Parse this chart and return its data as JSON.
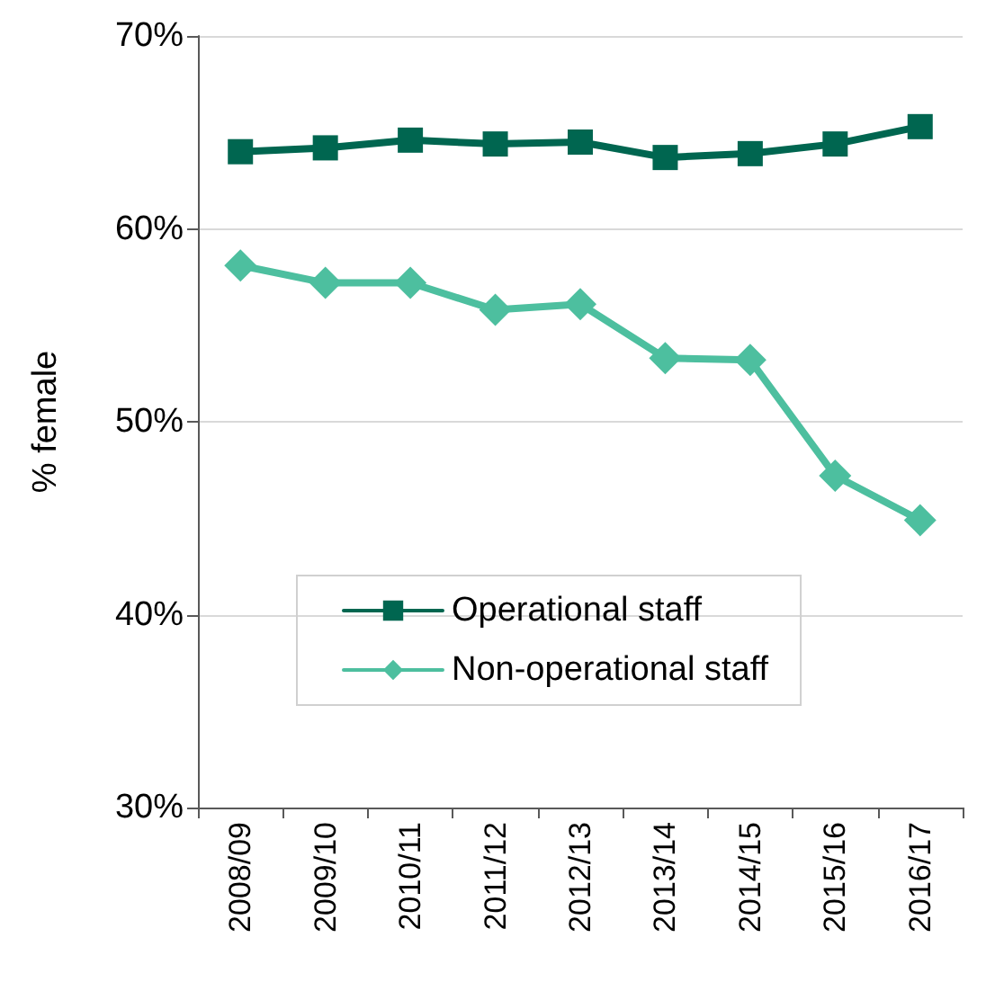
{
  "chart_data": {
    "type": "line",
    "ylabel": "% female",
    "categories": [
      "2008/09",
      "2009/10",
      "2010/11",
      "2011/12",
      "2012/13",
      "2013/14",
      "2014/15",
      "2015/16",
      "2016/17"
    ],
    "series": [
      {
        "name": "Operational staff",
        "color": "#006650",
        "marker": "square",
        "values": [
          64.0,
          64.2,
          64.6,
          64.4,
          64.5,
          63.7,
          63.9,
          64.4,
          65.3
        ]
      },
      {
        "name": "Non-operational staff",
        "color": "#4dbf9f",
        "marker": "diamond",
        "values": [
          58.1,
          57.2,
          57.2,
          55.8,
          56.1,
          53.3,
          53.2,
          47.2,
          44.9
        ]
      }
    ],
    "ylim": [
      30,
      70
    ],
    "yticks": [
      {
        "value": 30,
        "label": "30%"
      },
      {
        "value": 40,
        "label": "40%"
      },
      {
        "value": 50,
        "label": "50%"
      },
      {
        "value": 60,
        "label": "60%"
      },
      {
        "value": 70,
        "label": "70%"
      }
    ],
    "grid": "y",
    "legend": "bottom",
    "line_style": "solid"
  }
}
